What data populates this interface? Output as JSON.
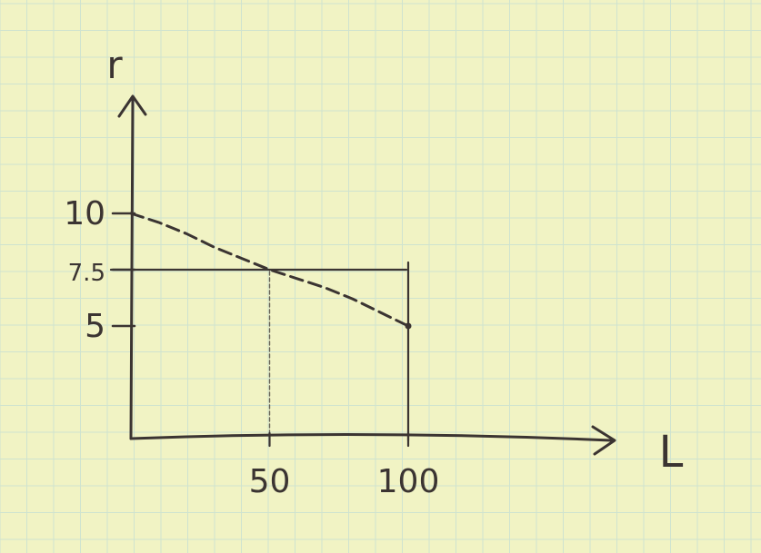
{
  "chart_data": {
    "type": "line",
    "style": "hand-drawn sketch on green graph paper",
    "xlabel": "L",
    "ylabel": "r",
    "xlim": [
      0,
      115
    ],
    "ylim": [
      0,
      14
    ],
    "x_ticks": [
      {
        "value": 50,
        "label": "50"
      },
      {
        "value": 100,
        "label": "100"
      }
    ],
    "y_ticks": [
      {
        "value": 10,
        "label": "10"
      },
      {
        "value": 7.5,
        "label": "7.5"
      },
      {
        "value": 5,
        "label": "5"
      }
    ],
    "series": [
      {
        "line": "dashed",
        "x": [
          0,
          10,
          20,
          30,
          40,
          50,
          60,
          70,
          80,
          90,
          100
        ],
        "y": [
          10,
          9.6,
          9.1,
          8.5,
          8.0,
          7.5,
          7.1,
          6.7,
          6.2,
          5.6,
          5
        ]
      }
    ],
    "reference_lines": [
      {
        "kind": "horizontal",
        "y": 7.5,
        "x_from": 0,
        "x_to": 100,
        "line": "solid"
      },
      {
        "kind": "vertical",
        "x": 100,
        "y_from": 0,
        "y_to": 7.5,
        "line": "solid"
      },
      {
        "kind": "vertical",
        "x": 50,
        "y_from": 0,
        "y_to": 7.5,
        "line": "dotted"
      }
    ],
    "grid": true,
    "colors": {
      "ink": "#3b3432",
      "paper": "#f1f3c4",
      "grid": "#cfe3cf"
    }
  }
}
